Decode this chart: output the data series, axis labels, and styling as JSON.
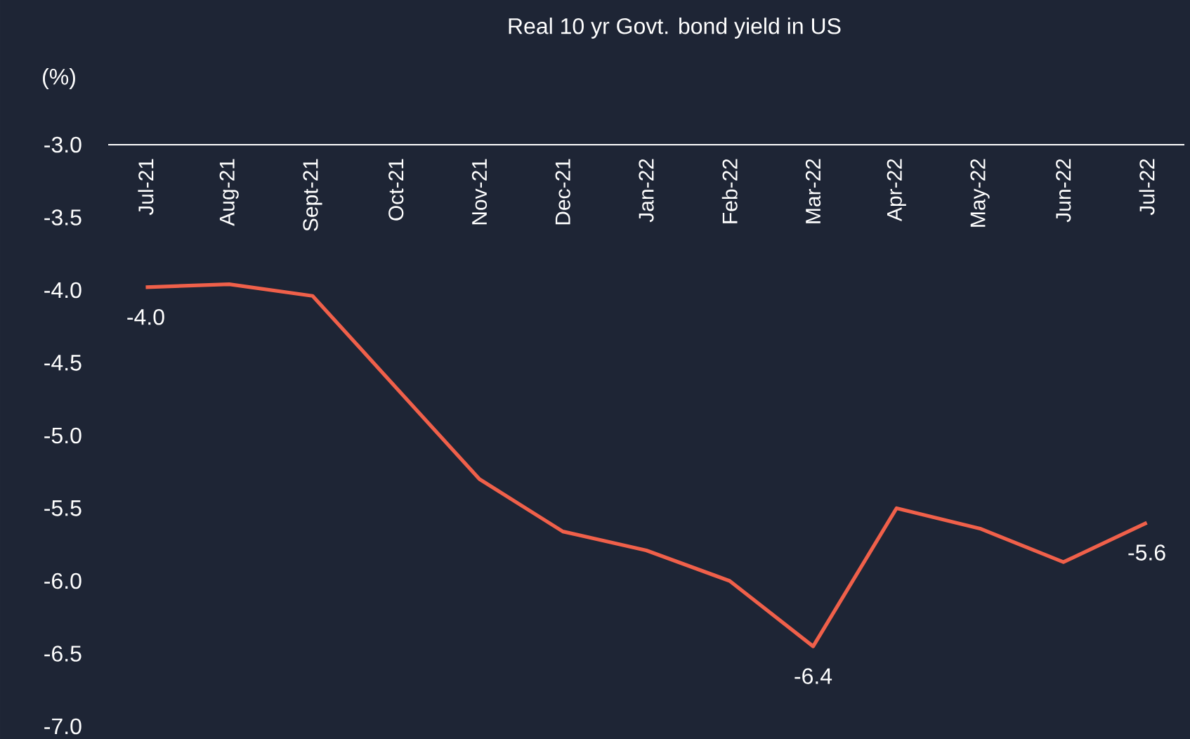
{
  "chart_data": {
    "type": "line",
    "title": "Real 10 yr Govt. bond yield in US",
    "ylabel": "(%)",
    "categories": [
      "Jul-21",
      "Aug-21",
      "Sept-21",
      "Oct-21",
      "Nov-21",
      "Dec-21",
      "Jan-22",
      "Feb-22",
      "Mar-22",
      "Apr-22",
      "May-22",
      "Jun-22",
      "Jul-22"
    ],
    "series": [
      {
        "color": "#f0604a",
        "values": [
          -3.98,
          -3.96,
          -4.04,
          -4.67,
          -5.3,
          -5.66,
          -5.79,
          -6.0,
          -6.45,
          -5.5,
          -5.64,
          -5.87,
          -5.6
        ],
        "value_labels": [
          "-4.0",
          null,
          null,
          null,
          null,
          null,
          null,
          null,
          "-6.4",
          null,
          null,
          null,
          "-5.6"
        ]
      }
    ],
    "ylim": [
      -7,
      -3
    ],
    "yticks": [
      {
        "value": -3,
        "label": "-3.0"
      },
      {
        "value": -3.5,
        "label": "-3.5"
      },
      {
        "value": -4,
        "label": "-4.0"
      },
      {
        "value": -4.5,
        "label": "-4.5"
      },
      {
        "value": -5,
        "label": "-5.0"
      },
      {
        "value": -5.5,
        "label": "-5.5"
      },
      {
        "value": -6,
        "label": "-6.0"
      },
      {
        "value": -6.5,
        "label": "-6.5"
      },
      {
        "value": -7,
        "label": "-7.0"
      }
    ],
    "marker": "none",
    "line_style": "solid"
  }
}
